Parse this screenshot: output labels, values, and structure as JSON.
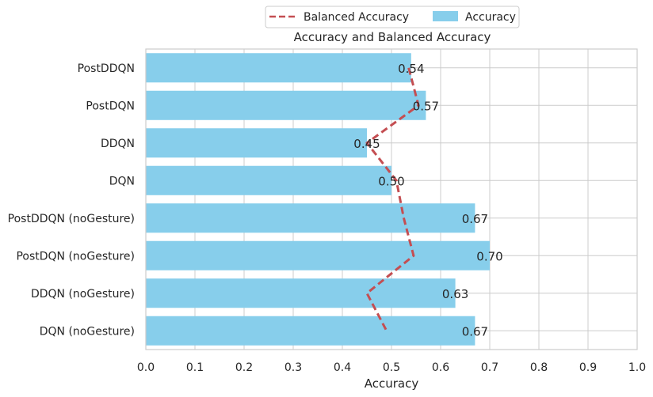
{
  "chart_data": {
    "type": "bar",
    "orientation": "horizontal",
    "title": "Accuracy and Balanced Accuracy",
    "xlabel": "Accuracy",
    "ylabel": "",
    "xlim": [
      0.0,
      1.0
    ],
    "x_ticks": [
      "0.0",
      "0.1",
      "0.2",
      "0.3",
      "0.4",
      "0.5",
      "0.6",
      "0.7",
      "0.8",
      "0.9",
      "1.0"
    ],
    "grid": true,
    "legend_placement": "top-center",
    "categories": [
      "PostDDQN",
      "PostDQN",
      "DDQN",
      "DQN",
      "PostDDQN (noGesture)",
      "PostDQN (noGesture)",
      "DDQN (noGesture)",
      "DQN (noGesture)"
    ],
    "series": [
      {
        "name": "Accuracy",
        "kind": "bar",
        "color": "#87ceeb",
        "values": [
          0.54,
          0.57,
          0.45,
          0.5,
          0.67,
          0.7,
          0.63,
          0.67
        ],
        "value_labels": [
          "0.54",
          "0.57",
          "0.45",
          "0.50",
          "0.67",
          "0.70",
          "0.63",
          "0.67"
        ]
      },
      {
        "name": "Balanced Accuracy",
        "kind": "line",
        "style": "dashed",
        "color": "#c44e52",
        "values": [
          0.535,
          0.555,
          0.45,
          0.51,
          0.525,
          0.545,
          0.45,
          0.49
        ]
      }
    ]
  }
}
